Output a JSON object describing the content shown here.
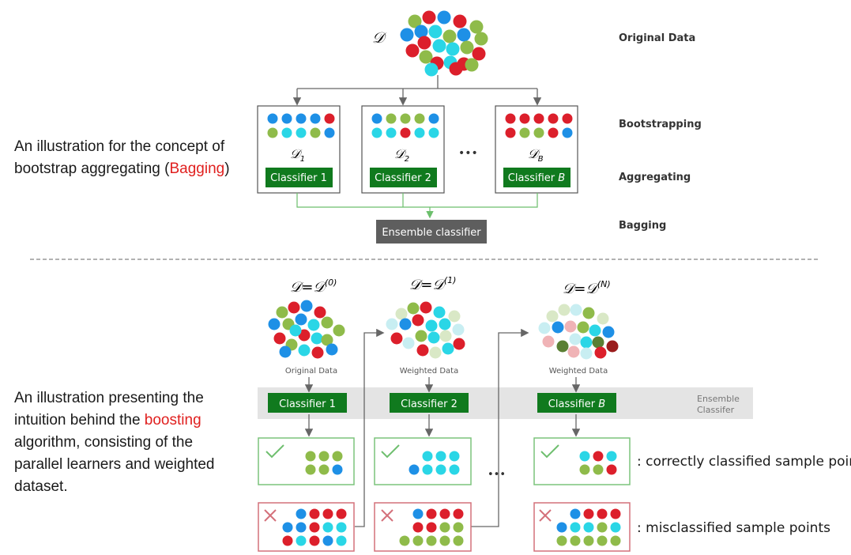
{
  "colors": {
    "blue": "#1e90e6",
    "red": "#dc1f2b",
    "green": "#8fbb4a",
    "cyan": "#2ad6e6",
    "pale_cyan": "#c8eef2",
    "pale_green": "#d9e8c6",
    "pale_red": "#f0b3b6",
    "dark_red": "#9a1c1c",
    "dark_green": "#5a7f33",
    "classifier_green": "#107a1e",
    "ensemble_gray": "#5e5e5e",
    "accent_red": "#e0201f"
  },
  "bagging": {
    "caption_before": "An illustration for the concept of bootstrap aggregating (",
    "caption_highlight": "Bagging",
    "caption_after": ")",
    "dataset_symbol": "𝒟",
    "labels": {
      "original_data": "Original Data",
      "bootstrapping": "Bootstrapping",
      "aggregating": "Aggregating",
      "bagging": "Bagging"
    },
    "samples": [
      {
        "symbol": "𝒟",
        "subscript": "1",
        "classifier": "Classifier 1",
        "top_row": [
          "blue",
          "blue",
          "blue",
          "blue",
          "red"
        ],
        "bottom_row": [
          "green",
          "cyan",
          "cyan",
          "green",
          "blue"
        ]
      },
      {
        "symbol": "𝒟",
        "subscript": "2",
        "classifier": "Classifier 2",
        "top_row": [
          "blue",
          "green",
          "green",
          "green",
          "blue"
        ],
        "bottom_row": [
          "cyan",
          "cyan",
          "red",
          "cyan",
          "cyan"
        ]
      },
      {
        "symbol": "𝒟",
        "subscript": "B",
        "classifier": "Classifier ",
        "classifier_italic": "B",
        "top_row": [
          "red",
          "red",
          "red",
          "red",
          "red"
        ],
        "bottom_row": [
          "red",
          "green",
          "green",
          "red",
          "blue"
        ]
      }
    ],
    "ellipsis": "•••",
    "ensemble": "Ensemble classifier"
  },
  "boosting": {
    "caption_before": "An illustration presenting the intuition behind the ",
    "caption_highlight": "boosting",
    "caption_after": " algorithm, consisting of the parallel learners and weighted dataset.",
    "ensemble_band_label": "Ensemble Classifer",
    "legend_correct": ": correctly classified sample points",
    "legend_misclassified": ": misclassified sample points",
    "ellipsis": "•••",
    "stages": [
      {
        "formula": "𝒟=𝒟",
        "superscript": "(0)",
        "data_label": "Original Data",
        "classifier": "Classifier 1",
        "correct": [
          [
            "green",
            "green",
            "green"
          ],
          [
            "green",
            "green",
            "blue"
          ]
        ],
        "wrong": [
          [
            "blue",
            "red",
            "red",
            "red"
          ],
          [
            "blue",
            "blue",
            "red",
            "cyan",
            "cyan"
          ],
          [
            "red",
            "cyan",
            "red",
            "blue",
            "cyan"
          ]
        ]
      },
      {
        "formula": "𝒟=𝒟",
        "superscript": "(1)",
        "data_label": "Weighted Data",
        "classifier": "Classifier 2",
        "correct": [
          [
            "cyan",
            "cyan",
            "cyan"
          ],
          [
            "blue",
            "cyan",
            "cyan",
            "cyan"
          ]
        ],
        "wrong": [
          [
            "blue",
            "red",
            "red",
            "red"
          ],
          [
            "red",
            "red",
            "green",
            "green"
          ],
          [
            "green",
            "green",
            "green",
            "green",
            "green"
          ]
        ]
      },
      {
        "formula": "𝒟=𝒟",
        "superscript": "(N)",
        "data_label": "Weighted Data",
        "classifier": "Classifier ",
        "classifier_italic": "B",
        "correct": [
          [
            "cyan",
            "red",
            "cyan"
          ],
          [
            "green",
            "green",
            "red"
          ]
        ],
        "wrong": [
          [
            "blue",
            "red",
            "red",
            "red"
          ],
          [
            "blue",
            "cyan",
            "cyan",
            "green",
            "cyan"
          ],
          [
            "green",
            "green",
            "green",
            "green",
            "green"
          ]
        ]
      }
    ]
  }
}
